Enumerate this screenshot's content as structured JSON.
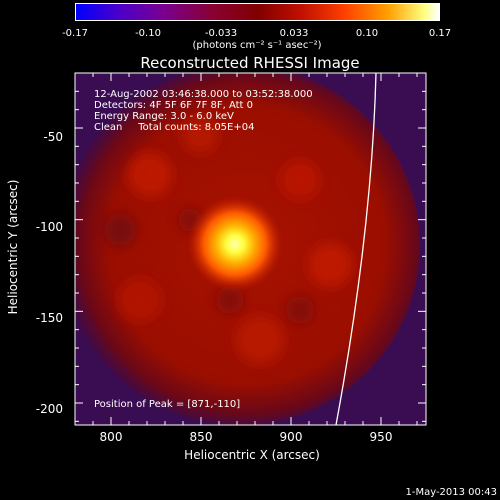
{
  "chart_data": {
    "type": "heatmap",
    "title": "Reconstructed RHESSI Image",
    "xlabel": "Heliocentric X (arcsec)",
    "ylabel": "Heliocentric Y (arcsec)",
    "xlim": [
      780,
      975
    ],
    "ylim": [
      -212,
      -20
    ],
    "xticks": [
      "800",
      "850",
      "900",
      "950"
    ],
    "yticks": [
      "-50",
      "-100",
      "-150",
      "-200"
    ],
    "colorbar": {
      "range": [
        -0.17,
        0.17
      ],
      "ticks": [
        "-0.17",
        "-0.10",
        "-0.033",
        "0.033",
        "0.10",
        "0.17"
      ],
      "unit_label": "(photons cm⁻² s⁻¹ asec⁻²)"
    },
    "peak_position": [
      871,
      -110
    ],
    "annotations": {
      "time": "12-Aug-2002 03:46:38.000 to 03:52:38.000",
      "detectors": "Detectors: 4F 5F 6F 7F 8F, Att 0",
      "energy": "Energy Range: 3.0 - 6.0 keV",
      "clean": "Clean     Total counts: 8.05E+04",
      "peak": "Position of Peak = [871,-110]"
    },
    "limb": "solar limb arc"
  },
  "footer": "1-May-2013 00:43",
  "colors": {
    "background": "#000000",
    "limb": "#ffffff",
    "peak": "#ffff60",
    "emission": "#b01400"
  }
}
